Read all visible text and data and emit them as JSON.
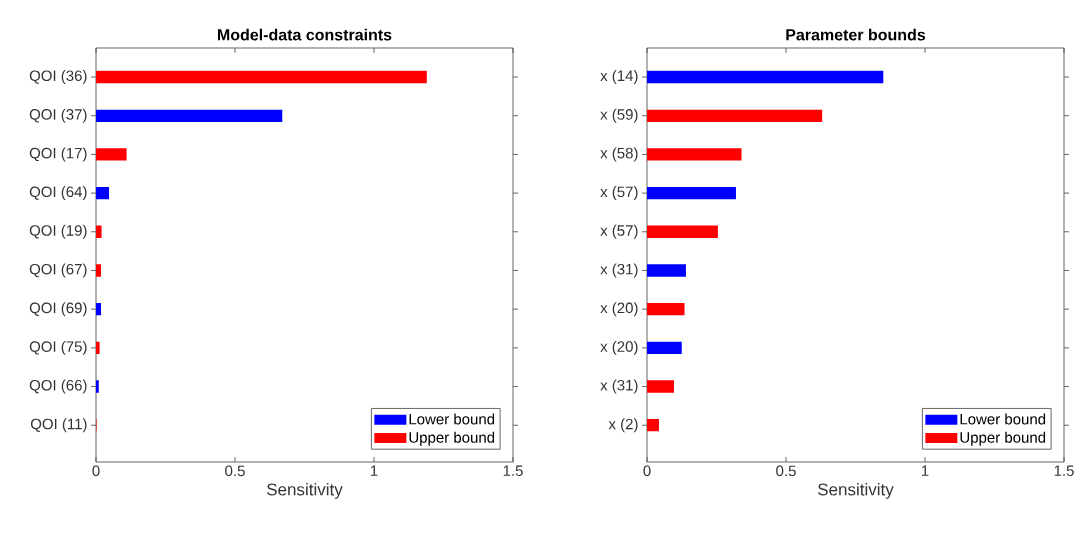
{
  "chart_data": [
    {
      "type": "bar",
      "orientation": "horizontal",
      "title": "Model-data constraints",
      "xlabel": "Sensitivity",
      "categories": [
        "QOI (36)",
        "QOI (37)",
        "QOI (17)",
        "QOI (64)",
        "QOI (19)",
        "QOI (67)",
        "QOI (69)",
        "QOI (75)",
        "QOI (66)",
        "QOI (11)"
      ],
      "series": [
        {
          "name": "Lower bound",
          "color": "#0000ff",
          "values": [
            null,
            0.67,
            null,
            0.047,
            null,
            null,
            0.018,
            null,
            0.01,
            null
          ]
        },
        {
          "name": "Upper bound",
          "color": "#ff0000",
          "values": [
            1.19,
            null,
            0.11,
            null,
            0.02,
            0.018,
            null,
            0.013,
            null,
            0.002
          ]
        }
      ],
      "xlim": [
        0,
        1.5
      ],
      "xticks": [
        0,
        0.5,
        1,
        1.5
      ],
      "legend": "bottom right"
    },
    {
      "type": "bar",
      "orientation": "horizontal",
      "title": "Parameter bounds",
      "xlabel": "Sensitivity",
      "categories": [
        "x (14)",
        "x (59)",
        "x (58)",
        "x (57)",
        "x (57)",
        "x (31)",
        "x (20)",
        "x (20)",
        "x (31)",
        "x (2)"
      ],
      "series": [
        {
          "name": "Lower bound",
          "color": "#0000ff",
          "values": [
            0.85,
            null,
            null,
            0.32,
            null,
            0.14,
            null,
            0.125,
            null,
            null
          ]
        },
        {
          "name": "Upper bound",
          "color": "#ff0000",
          "values": [
            null,
            0.63,
            0.34,
            null,
            0.255,
            null,
            0.135,
            null,
            0.097,
            0.043
          ]
        }
      ],
      "xlim": [
        0,
        1.5
      ],
      "xticks": [
        0,
        0.5,
        1,
        1.5
      ],
      "legend": "bottom right"
    }
  ]
}
